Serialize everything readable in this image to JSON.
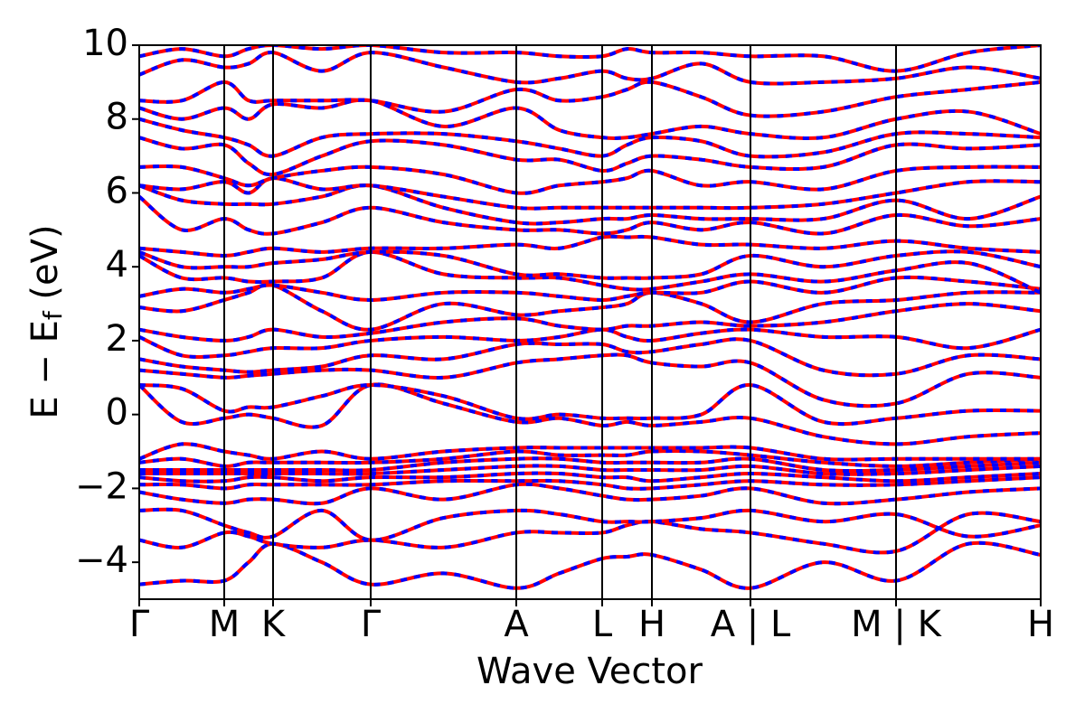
{
  "chart_data": {
    "type": "band-structure",
    "xlabel": "Wave Vector",
    "ylabel": [
      "E − E",
      "f",
      " (eV)"
    ],
    "xlim": [
      0,
      9.97
    ],
    "ylim": [
      -5,
      10
    ],
    "xticks": [
      {
        "value": 0,
        "label": "Γ"
      },
      {
        "value": 0.94,
        "label": "M"
      },
      {
        "value": 1.48,
        "label": "K"
      },
      {
        "value": 2.56,
        "label": "Γ"
      },
      {
        "value": 4.17,
        "label": "A"
      },
      {
        "value": 5.12,
        "label": "L"
      },
      {
        "value": 5.67,
        "label": "H"
      },
      {
        "value": 6.76,
        "label": "A | L"
      },
      {
        "value": 8.37,
        "label": "M | K"
      },
      {
        "value": 9.97,
        "label": "H"
      }
    ],
    "yticks": [
      {
        "value": -4,
        "label": "−4"
      },
      {
        "value": -2,
        "label": "−2"
      },
      0,
      2,
      4,
      6,
      8,
      10
    ],
    "color": "#ff0000",
    "dash_color": "#0000ff",
    "x": [
      0,
      0.47,
      0.94,
      1.21,
      1.48,
      2.02,
      2.56,
      3.365,
      4.17,
      4.645,
      5.12,
      5.395,
      5.67,
      6.215,
      6.76,
      7.565,
      8.37,
      9.17,
      9.97
    ],
    "series": [
      {
        "values": [
          -4.6,
          -4.5,
          -4.5,
          -4.0,
          -3.5,
          -4.0,
          -4.6,
          -4.3,
          -4.7,
          -4.3,
          -3.9,
          -3.85,
          -3.8,
          -4.2,
          -4.7,
          -4.0,
          -4.5,
          -3.5,
          -3.8
        ]
      },
      {
        "values": [
          -3.4,
          -3.6,
          -3.2,
          -3.3,
          -3.5,
          -3.6,
          -3.4,
          -3.6,
          -3.2,
          -3.2,
          -3.2,
          -3.0,
          -2.9,
          -3.1,
          -3.2,
          -3.5,
          -3.7,
          -2.7,
          -2.9
        ]
      },
      {
        "values": [
          -2.6,
          -2.6,
          -3.0,
          -3.2,
          -3.3,
          -2.6,
          -3.4,
          -2.8,
          -2.6,
          -2.7,
          -2.9,
          -2.9,
          -2.9,
          -2.8,
          -2.6,
          -2.9,
          -2.7,
          -3.3,
          -3.0
        ]
      },
      {
        "values": [
          -2.1,
          -2.3,
          -2.4,
          -2.3,
          -2.3,
          -2.4,
          -2.0,
          -2.3,
          -1.9,
          -2.0,
          -2.2,
          -2.3,
          -2.3,
          -2.2,
          -2.0,
          -2.4,
          -2.3,
          -2.1,
          -2.0
        ]
      },
      {
        "values": [
          -1.9,
          -1.9,
          -2.0,
          -1.9,
          -1.9,
          -1.9,
          -1.9,
          -1.8,
          -1.8,
          -1.8,
          -1.9,
          -2.0,
          -2.0,
          -1.9,
          -1.8,
          -1.9,
          -1.9,
          -1.8,
          -1.7
        ]
      },
      {
        "values": [
          -1.7,
          -1.8,
          -1.8,
          -1.7,
          -1.7,
          -1.8,
          -1.7,
          -1.7,
          -1.6,
          -1.6,
          -1.7,
          -1.7,
          -1.8,
          -1.7,
          -1.6,
          -1.7,
          -1.8,
          -1.7,
          -1.6
        ]
      },
      {
        "values": [
          -1.6,
          -1.6,
          -1.6,
          -1.6,
          -1.6,
          -1.6,
          -1.6,
          -1.5,
          -1.4,
          -1.4,
          -1.5,
          -1.5,
          -1.5,
          -1.5,
          -1.4,
          -1.6,
          -1.6,
          -1.5,
          -1.4
        ]
      },
      {
        "values": [
          -1.5,
          -1.5,
          -1.5,
          -1.5,
          -1.5,
          -1.5,
          -1.5,
          -1.3,
          -1.2,
          -1.2,
          -1.3,
          -1.3,
          -1.3,
          -1.3,
          -1.2,
          -1.5,
          -1.5,
          -1.4,
          -1.3
        ]
      },
      {
        "values": [
          -1.3,
          -1.2,
          -1.4,
          -1.3,
          -1.3,
          -1.3,
          -1.3,
          -1.2,
          -1.0,
          -1.1,
          -1.1,
          -1.1,
          -1.0,
          -1.0,
          -1.1,
          -1.3,
          -1.4,
          -1.3,
          -1.2
        ]
      },
      {
        "values": [
          -1.2,
          -0.8,
          -1.0,
          -1.1,
          -1.2,
          -1.0,
          -1.2,
          -1.0,
          -0.9,
          -0.9,
          -0.9,
          -0.9,
          -0.9,
          -0.9,
          -0.9,
          -1.2,
          -1.2,
          -1.2,
          -1.2
        ]
      },
      {
        "values": [
          0.8,
          -0.2,
          -0.1,
          0.0,
          -0.1,
          -0.3,
          0.8,
          0.3,
          -0.2,
          -0.1,
          -0.3,
          -0.2,
          -0.3,
          -0.2,
          -0.1,
          -0.6,
          -0.8,
          -0.6,
          -0.5
        ]
      },
      {
        "values": [
          0.8,
          0.7,
          0.1,
          0.2,
          0.2,
          0.5,
          0.8,
          0.5,
          -0.1,
          0.0,
          -0.1,
          -0.1,
          -0.1,
          0.0,
          0.8,
          -0.2,
          -0.1,
          0.1,
          0.1
        ]
      },
      {
        "values": [
          1.2,
          1.1,
          1.0,
          1.05,
          1.1,
          1.2,
          1.2,
          1.0,
          1.4,
          1.5,
          1.6,
          1.6,
          1.4,
          1.3,
          1.4,
          0.4,
          0.3,
          1.1,
          1.0
        ]
      },
      {
        "values": [
          1.5,
          1.3,
          1.2,
          1.15,
          1.2,
          1.3,
          1.6,
          1.5,
          1.9,
          1.9,
          1.9,
          1.7,
          1.7,
          1.9,
          2.0,
          1.2,
          1.1,
          1.6,
          1.5
        ]
      },
      {
        "values": [
          2.1,
          1.6,
          1.6,
          1.7,
          1.8,
          1.8,
          2.0,
          2.1,
          2.0,
          2.1,
          2.3,
          2.1,
          2.0,
          2.2,
          2.3,
          2.1,
          2.1,
          1.8,
          2.3
        ]
      },
      {
        "values": [
          2.3,
          2.1,
          2.0,
          2.1,
          2.3,
          2.1,
          2.2,
          2.5,
          2.6,
          2.4,
          2.3,
          2.4,
          2.4,
          2.5,
          2.4,
          2.5,
          2.8,
          3.0,
          2.8
        ]
      },
      {
        "values": [
          2.9,
          2.8,
          3.1,
          3.3,
          3.5,
          2.8,
          2.3,
          3.0,
          2.7,
          2.8,
          2.9,
          3.0,
          3.3,
          3.0,
          2.5,
          3.0,
          3.1,
          3.3,
          3.3
        ]
      },
      {
        "values": [
          3.2,
          3.4,
          3.3,
          3.4,
          3.5,
          3.3,
          3.1,
          3.3,
          3.3,
          3.2,
          3.1,
          3.2,
          3.3,
          3.3,
          3.6,
          3.3,
          3.7,
          3.6,
          3.4
        ]
      },
      {
        "values": [
          4.3,
          3.7,
          3.7,
          3.6,
          3.6,
          3.7,
          4.4,
          3.8,
          3.7,
          3.7,
          3.5,
          3.4,
          3.4,
          3.6,
          3.8,
          3.6,
          3.9,
          4.1,
          3.3
        ]
      },
      {
        "values": [
          4.4,
          4.0,
          4.0,
          4.0,
          4.1,
          4.2,
          4.4,
          4.3,
          3.8,
          3.8,
          3.7,
          3.7,
          3.7,
          3.8,
          4.3,
          4.0,
          4.3,
          4.4,
          4.0
        ]
      },
      {
        "values": [
          4.5,
          4.4,
          4.3,
          4.4,
          4.5,
          4.4,
          4.5,
          4.5,
          4.6,
          4.5,
          4.8,
          4.8,
          4.8,
          4.6,
          4.6,
          4.5,
          4.7,
          4.5,
          4.4
        ]
      },
      {
        "values": [
          5.9,
          5.0,
          5.3,
          5.0,
          4.9,
          5.2,
          5.6,
          5.2,
          5.0,
          5.0,
          4.9,
          5.0,
          5.2,
          5.0,
          5.2,
          4.9,
          5.4,
          5.1,
          5.3
        ]
      },
      {
        "values": [
          6.2,
          5.8,
          5.7,
          5.7,
          5.7,
          5.9,
          6.2,
          5.6,
          5.2,
          5.2,
          5.3,
          5.3,
          5.4,
          5.3,
          5.3,
          5.3,
          5.8,
          5.3,
          5.9
        ]
      },
      {
        "values": [
          6.2,
          6.1,
          6.3,
          6.0,
          6.4,
          6.1,
          6.2,
          5.9,
          5.6,
          5.6,
          5.6,
          5.6,
          5.6,
          5.6,
          5.6,
          5.7,
          6.0,
          6.3,
          6.3
        ]
      },
      {
        "values": [
          6.7,
          6.7,
          6.4,
          6.2,
          6.4,
          6.6,
          6.7,
          6.5,
          6.0,
          6.2,
          6.3,
          6.4,
          6.6,
          6.2,
          6.3,
          6.1,
          6.6,
          6.7,
          6.7
        ]
      },
      {
        "values": [
          7.5,
          7.2,
          7.3,
          6.8,
          6.5,
          7.0,
          7.4,
          7.3,
          6.9,
          6.9,
          6.6,
          6.8,
          7.0,
          6.9,
          6.7,
          6.7,
          7.3,
          7.2,
          7.3
        ]
      },
      {
        "values": [
          8.0,
          7.7,
          7.5,
          7.3,
          7.0,
          7.5,
          7.6,
          7.6,
          7.4,
          7.2,
          7.0,
          7.3,
          7.5,
          7.4,
          7.0,
          7.1,
          7.6,
          7.6,
          7.5
        ]
      },
      {
        "values": [
          8.3,
          8.0,
          8.3,
          8.0,
          8.4,
          8.3,
          8.5,
          7.8,
          8.3,
          7.7,
          7.5,
          7.5,
          7.6,
          7.8,
          7.6,
          7.5,
          8.0,
          8.2,
          7.6
        ]
      },
      {
        "values": [
          8.5,
          8.5,
          9.0,
          8.5,
          8.5,
          8.5,
          8.5,
          8.2,
          8.8,
          8.5,
          8.6,
          8.8,
          9.0,
          8.6,
          8.1,
          8.2,
          8.6,
          8.8,
          9.0
        ]
      },
      {
        "values": [
          9.2,
          9.6,
          9.4,
          9.5,
          9.8,
          9.3,
          9.8,
          9.4,
          9.0,
          9.1,
          9.3,
          9.1,
          9.1,
          9.5,
          9.0,
          9.0,
          9.1,
          9.4,
          9.1
        ]
      },
      {
        "values": [
          9.7,
          9.9,
          9.7,
          9.9,
          10.0,
          9.9,
          10.0,
          9.8,
          9.8,
          9.7,
          9.7,
          9.9,
          9.8,
          9.8,
          9.7,
          9.7,
          9.3,
          9.8,
          10.0
        ]
      }
    ]
  }
}
